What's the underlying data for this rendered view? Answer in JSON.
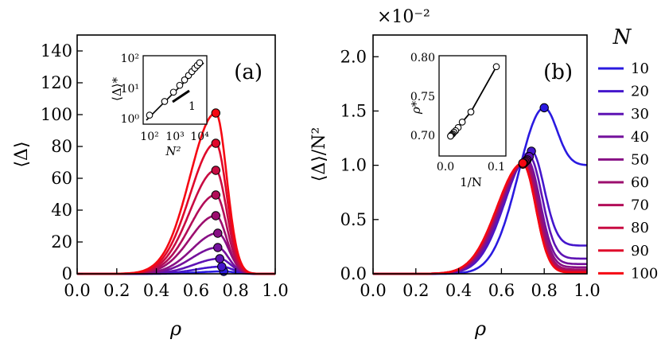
{
  "chart_data": [
    {
      "type": "line",
      "panel_label": "(a)",
      "xlabel": "ρ",
      "ylabel": "⟨Δ⟩",
      "xlim": [
        0.0,
        1.0
      ],
      "ylim": [
        0,
        150
      ],
      "xticks": [
        "0.0",
        "0.2",
        "0.4",
        "0.6",
        "0.8",
        "1.0"
      ],
      "yticks": [
        "0",
        "20",
        "40",
        "60",
        "80",
        "100",
        "120",
        "140"
      ],
      "x": [
        0.0,
        0.1,
        0.2,
        0.3,
        0.35,
        0.4,
        0.45,
        0.5,
        0.55,
        0.6,
        0.65,
        0.68,
        0.7,
        0.72,
        0.75,
        0.78,
        0.8,
        0.85,
        0.9,
        0.95,
        1.0
      ],
      "peaks": [
        {
          "N": "10",
          "x": 0.74,
          "y": 1.5
        },
        {
          "N": "20",
          "x": 0.73,
          "y": 4.5
        },
        {
          "N": "30",
          "x": 0.72,
          "y": 9.5
        },
        {
          "N": "40",
          "x": 0.71,
          "y": 16.5
        },
        {
          "N": "50",
          "x": 0.71,
          "y": 25.5
        },
        {
          "N": "60",
          "x": 0.7,
          "y": 36.5
        },
        {
          "N": "70",
          "x": 0.7,
          "y": 49.5
        },
        {
          "N": "80",
          "x": 0.7,
          "y": 65
        },
        {
          "N": "90",
          "x": 0.7,
          "y": 82
        },
        {
          "N": "100",
          "x": 0.7,
          "y": 101
        }
      ],
      "inset": {
        "ylabel": "⟨Δ⟩*",
        "xlabel": "N²",
        "xticks": [
          "10²",
          "10³",
          "10⁴"
        ],
        "yticks": [
          "10⁰",
          "10¹",
          "10²"
        ],
        "slope_label": "1",
        "points_N": [
          "10",
          "20",
          "30",
          "40",
          "50",
          "60",
          "70",
          "80",
          "90",
          "100"
        ]
      }
    },
    {
      "type": "line",
      "panel_label": "(b)",
      "xlabel": "ρ",
      "ylabel": "⟨Δ⟩/N²",
      "multiplier": "×10⁻²",
      "xlim": [
        0.0,
        1.0
      ],
      "ylim": [
        0,
        2.2
      ],
      "xticks": [
        "0.0",
        "0.2",
        "0.4",
        "0.6",
        "0.8",
        "1.0"
      ],
      "yticks": [
        "0.0",
        "0.5",
        "1.0",
        "1.5",
        "2.0"
      ],
      "peaks": [
        {
          "N": "10",
          "x": 0.8,
          "y": 1.53
        },
        {
          "N": "20",
          "x": 0.74,
          "y": 1.13
        },
        {
          "N": "30",
          "x": 0.73,
          "y": 1.08
        },
        {
          "N": "40",
          "x": 0.72,
          "y": 1.05
        },
        {
          "N": "50",
          "x": 0.715,
          "y": 1.04
        },
        {
          "N": "60",
          "x": 0.71,
          "y": 1.03
        },
        {
          "N": "70",
          "x": 0.705,
          "y": 1.02
        },
        {
          "N": "80",
          "x": 0.7,
          "y": 1.015
        },
        {
          "N": "90",
          "x": 0.7,
          "y": 1.01
        },
        {
          "N": "100",
          "x": 0.7,
          "y": 1.02
        }
      ],
      "tails": [
        1.0,
        0.26,
        0.14,
        0.09,
        0.06,
        0.04,
        0.03,
        0.02,
        0.015,
        0.01
      ],
      "inset": {
        "ylabel": "ρ*",
        "xlabel": "1/N",
        "xticks": [
          "0.0",
          "0.1"
        ],
        "yticks": [
          "0.70",
          "0.75",
          "0.80"
        ],
        "points": [
          {
            "x": 0.1,
            "y": 0.789
          },
          {
            "x": 0.05,
            "y": 0.731
          },
          {
            "x": 0.033,
            "y": 0.718
          },
          {
            "x": 0.025,
            "y": 0.711
          },
          {
            "x": 0.02,
            "y": 0.707
          },
          {
            "x": 0.0167,
            "y": 0.705
          },
          {
            "x": 0.0143,
            "y": 0.703
          },
          {
            "x": 0.0125,
            "y": 0.702
          },
          {
            "x": 0.0111,
            "y": 0.701
          },
          {
            "x": 0.01,
            "y": 0.7
          }
        ]
      }
    }
  ],
  "legend": {
    "title": "N",
    "placement": "right",
    "entries": [
      {
        "label": "10",
        "color": "#2a1ae0"
      },
      {
        "label": "20",
        "color": "#4416cc"
      },
      {
        "label": "30",
        "color": "#5e13b4"
      },
      {
        "label": "40",
        "color": "#74119c"
      },
      {
        "label": "50",
        "color": "#881085"
      },
      {
        "label": "60",
        "color": "#9c0e6e"
      },
      {
        "label": "70",
        "color": "#b20d58"
      },
      {
        "label": "80",
        "color": "#c80b42"
      },
      {
        "label": "90",
        "color": "#df082a"
      },
      {
        "label": "100",
        "color": "#f50812"
      }
    ]
  }
}
